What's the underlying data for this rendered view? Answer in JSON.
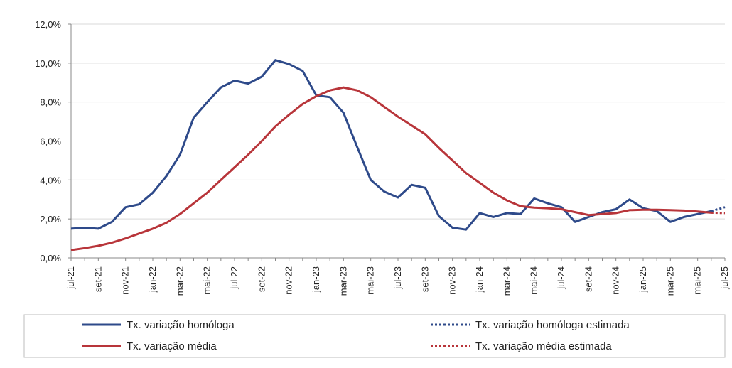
{
  "chart_data": {
    "type": "line",
    "title": "",
    "xlabel": "",
    "ylabel": "",
    "ylim": [
      0,
      12
    ],
    "yticks": [
      "0,0%",
      "2,0%",
      "4,0%",
      "6,0%",
      "8,0%",
      "10,0%",
      "12,0%"
    ],
    "grid": "horizontal",
    "legend_position": "bottom",
    "x": [
      "jul-21",
      "ago-21",
      "set-21",
      "out-21",
      "nov-21",
      "dez-21",
      "jan-22",
      "fev-22",
      "mar-22",
      "abr-22",
      "mai-22",
      "jun-22",
      "jul-22",
      "ago-22",
      "set-22",
      "out-22",
      "nov-22",
      "dez-22",
      "jan-23",
      "fev-23",
      "mar-23",
      "abr-23",
      "mai-23",
      "jun-23",
      "jul-23",
      "ago-23",
      "set-23",
      "out-23",
      "nov-23",
      "dez-23",
      "jan-24",
      "fev-24",
      "mar-24",
      "abr-24",
      "mai-24",
      "jun-24",
      "jul-24",
      "ago-24",
      "set-24",
      "out-24",
      "nov-24",
      "dez-24",
      "jan-25",
      "fev-25",
      "mar-25",
      "abr-25",
      "mai-25",
      "jun-25",
      "jul-25"
    ],
    "x_tick_labels": [
      "jul-21",
      "set-21",
      "nov-21",
      "jan-22",
      "mar-22",
      "mai-22",
      "jul-22",
      "set-22",
      "nov-22",
      "jan-23",
      "mar-23",
      "mai-23",
      "jul-23",
      "set-23",
      "nov-23",
      "jan-24",
      "mar-24",
      "mai-24",
      "jul-24",
      "set-24",
      "nov-24",
      "jan-25",
      "mar-25",
      "mai-25",
      "jul-25"
    ],
    "series": [
      {
        "name": "Tx. variação homóloga",
        "color": "#2e4a8a",
        "style": "solid",
        "values": [
          1.5,
          1.55,
          1.5,
          1.85,
          2.6,
          2.75,
          3.35,
          4.2,
          5.3,
          7.2,
          8.0,
          8.75,
          9.1,
          8.95,
          9.3,
          10.15,
          9.95,
          9.6,
          8.35,
          8.25,
          7.45,
          5.7,
          4.0,
          3.4,
          3.1,
          3.75,
          3.6,
          2.15,
          1.55,
          1.45,
          2.3,
          2.1,
          2.3,
          2.25,
          3.05,
          2.8,
          2.6,
          1.85,
          2.1,
          2.35,
          2.5,
          3.0,
          2.55,
          2.4,
          1.85,
          2.1,
          2.25,
          2.4,
          null
        ]
      },
      {
        "name": "Tx. variação homóloga estimada",
        "color": "#2e4a8a",
        "style": "dotted",
        "values": [
          null,
          null,
          null,
          null,
          null,
          null,
          null,
          null,
          null,
          null,
          null,
          null,
          null,
          null,
          null,
          null,
          null,
          null,
          null,
          null,
          null,
          null,
          null,
          null,
          null,
          null,
          null,
          null,
          null,
          null,
          null,
          null,
          null,
          null,
          null,
          null,
          null,
          null,
          null,
          null,
          null,
          null,
          null,
          null,
          null,
          null,
          null,
          2.4,
          2.6
        ]
      },
      {
        "name": "Tx. variação média",
        "color": "#b8353a",
        "style": "solid",
        "values": [
          0.4,
          0.5,
          0.62,
          0.78,
          1.0,
          1.25,
          1.5,
          1.8,
          2.25,
          2.8,
          3.35,
          4.0,
          4.65,
          5.3,
          6.0,
          6.75,
          7.35,
          7.9,
          8.3,
          8.6,
          8.75,
          8.6,
          8.25,
          7.75,
          7.25,
          6.8,
          6.35,
          5.65,
          5.0,
          4.35,
          3.85,
          3.35,
          2.95,
          2.65,
          2.58,
          2.55,
          2.5,
          2.35,
          2.2,
          2.25,
          2.3,
          2.45,
          2.47,
          2.47,
          2.45,
          2.43,
          2.38,
          2.32,
          null
        ]
      },
      {
        "name": "Tx. variação média  estimada",
        "color": "#b8353a",
        "style": "dotted",
        "values": [
          null,
          null,
          null,
          null,
          null,
          null,
          null,
          null,
          null,
          null,
          null,
          null,
          null,
          null,
          null,
          null,
          null,
          null,
          null,
          null,
          null,
          null,
          null,
          null,
          null,
          null,
          null,
          null,
          null,
          null,
          null,
          null,
          null,
          null,
          null,
          null,
          null,
          null,
          null,
          null,
          null,
          null,
          null,
          null,
          null,
          null,
          null,
          2.32,
          2.3
        ]
      }
    ]
  },
  "legend": {
    "items": [
      {
        "label": "Tx. variação homóloga",
        "color": "#2e4a8a",
        "style": "solid"
      },
      {
        "label": "Tx. variação homóloga estimada",
        "color": "#2e4a8a",
        "style": "dotted"
      },
      {
        "label": "Tx. variação média",
        "color": "#b8353a",
        "style": "solid"
      },
      {
        "label": "Tx. variação média  estimada",
        "color": "#b8353a",
        "style": "dotted"
      }
    ]
  }
}
